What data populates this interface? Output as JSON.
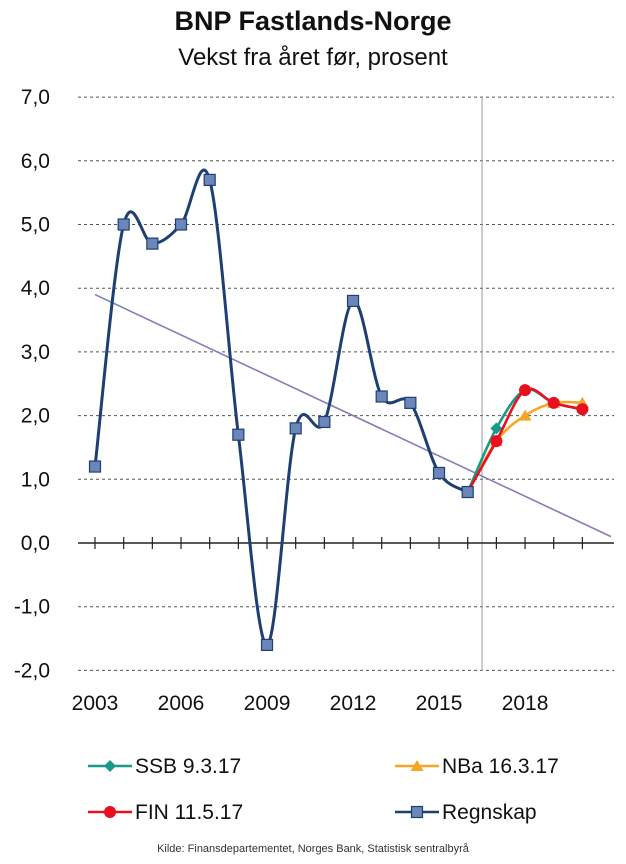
{
  "chart_data": {
    "type": "line",
    "title": "BNP Fastlands-Norge",
    "subtitle": "Vekst fra året før, prosent",
    "ylim": [
      -2.0,
      7.0
    ],
    "y_ticks": [
      "7,0",
      "6,0",
      "5,0",
      "4,0",
      "3,0",
      "2,0",
      "1,0",
      "0,0",
      "-1,0",
      "-2,0"
    ],
    "y_tick_values": [
      7,
      6,
      5,
      4,
      3,
      2,
      1,
      0,
      -1,
      -2
    ],
    "x_range": [
      2003,
      2020
    ],
    "x_tick_labels": [
      "2003",
      "2006",
      "2009",
      "2012",
      "2015",
      "2018"
    ],
    "x_tick_values": [
      2003,
      2006,
      2009,
      2012,
      2015,
      2018
    ],
    "grid": "horizontal dashed",
    "vertical_marker_x": 2016.5,
    "series": [
      {
        "name": "Regnskap",
        "color": "#1f3f73",
        "marker": "square",
        "points": [
          [
            2003,
            1.2
          ],
          [
            2004,
            5.0
          ],
          [
            2005,
            4.7
          ],
          [
            2006,
            5.0
          ],
          [
            2007,
            5.7
          ],
          [
            2008,
            1.7
          ],
          [
            2009,
            -1.6
          ],
          [
            2010,
            1.8
          ],
          [
            2011,
            1.9
          ],
          [
            2012,
            3.8
          ],
          [
            2013,
            2.3
          ],
          [
            2014,
            2.2
          ],
          [
            2015,
            1.1
          ],
          [
            2016,
            0.8
          ]
        ]
      },
      {
        "name": "SSB 9.3.17",
        "color": "#1a9a8c",
        "marker": "diamond",
        "points": [
          [
            2016,
            0.8
          ],
          [
            2017,
            1.8
          ],
          [
            2018,
            2.4
          ],
          [
            2019,
            2.2
          ],
          [
            2020,
            2.1
          ]
        ]
      },
      {
        "name": "NBa 16.3.17",
        "color": "#f5a623",
        "marker": "triangle",
        "points": [
          [
            2016,
            0.8
          ],
          [
            2017,
            1.6
          ],
          [
            2018,
            2.0
          ],
          [
            2019,
            2.2
          ],
          [
            2020,
            2.2
          ]
        ]
      },
      {
        "name": "FIN 11.5.17",
        "color": "#e8101e",
        "marker": "circle",
        "points": [
          [
            2016,
            0.8
          ],
          [
            2017,
            1.6
          ],
          [
            2018,
            2.4
          ],
          [
            2019,
            2.2
          ],
          [
            2020,
            2.1
          ]
        ]
      }
    ],
    "trendline": {
      "color": "#8080b8",
      "points": [
        [
          2003,
          3.9
        ],
        [
          2021,
          0.1
        ]
      ]
    },
    "legend": {
      "placement": "bottom",
      "entries": [
        "SSB 9.3.17",
        "NBa 16.3.17",
        "FIN 11.5.17",
        "Regnskap"
      ]
    },
    "source": "Kilde: Finansdepartementet, Norges Bank, Statistisk sentralbyrå"
  }
}
